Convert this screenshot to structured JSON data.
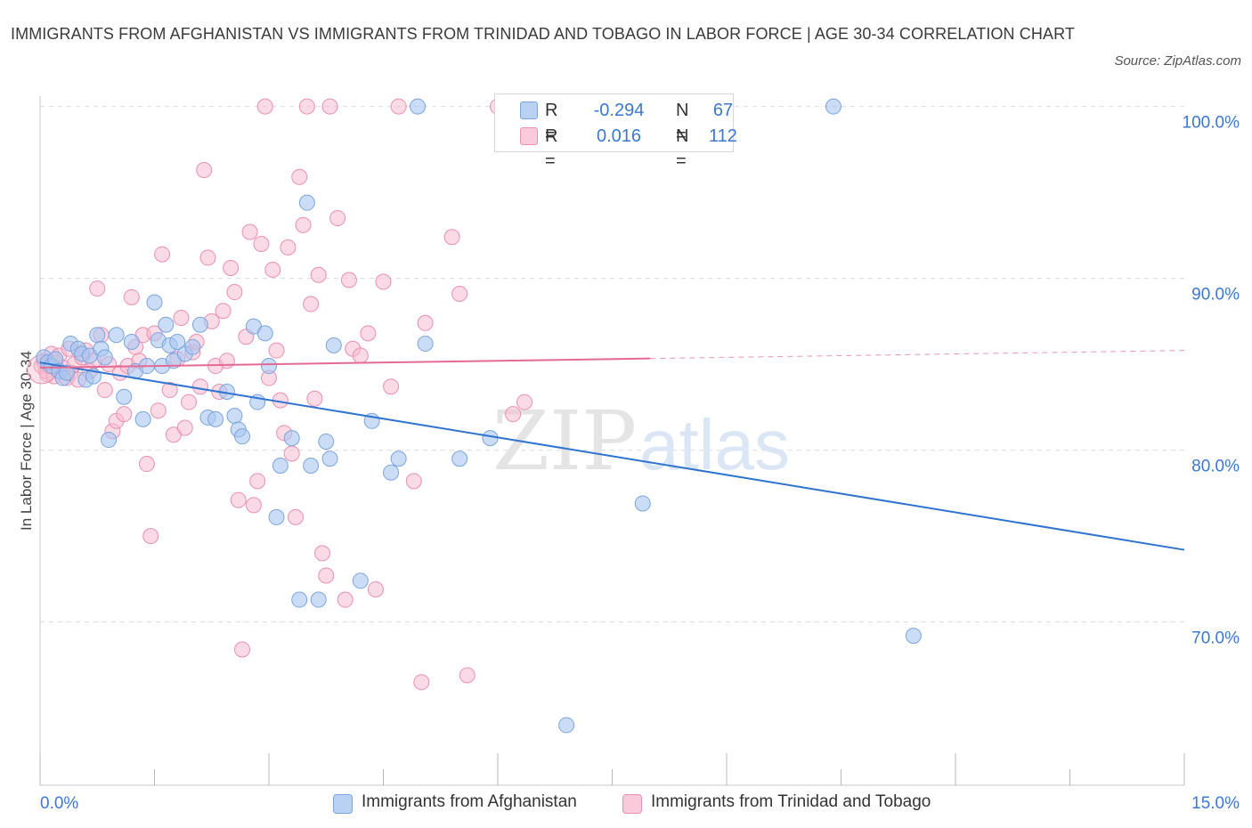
{
  "title": "IMMIGRANTS FROM AFGHANISTAN VS IMMIGRANTS FROM TRINIDAD AND TOBAGO IN LABOR FORCE | AGE 30-34 CORRELATION CHART",
  "source": "Source: ZipAtlas.com",
  "watermark": {
    "zip": "ZIP",
    "atlas": "atlas"
  },
  "legend": {
    "r_label": "R =",
    "n_label": "N =",
    "series": [
      {
        "r": "-0.294",
        "n": "67"
      },
      {
        "r": "0.016",
        "n": "112"
      }
    ]
  },
  "bottom_legend": [
    "Immigrants from Afghanistan",
    "Immigrants from Trinidad and Tobago"
  ],
  "colors": {
    "blue_fill": "#a8c6f0",
    "blue_stroke": "#7aa5e0",
    "blue_line": "#2f74d0",
    "pink_fill": "#f6bcd0",
    "pink_stroke": "#ec8fb0",
    "pink_line": "#e46a96",
    "axis_label": "#3b78d4",
    "grid": "#dcdcdc"
  },
  "chart_data": {
    "type": "scatter",
    "title": "IMMIGRANTS FROM AFGHANISTAN VS IMMIGRANTS FROM TRINIDAD AND TOBAGO IN LABOR FORCE | AGE 30-34 CORRELATION CHART",
    "xlabel": "",
    "ylabel": "In Labor Force | Age 30-34",
    "xlim": [
      0.0,
      15.0
    ],
    "ylim": [
      60.5,
      100.6
    ],
    "x_tick_labels": [
      "0.0%",
      "15.0%"
    ],
    "y_ticks": [
      70,
      80,
      90,
      100
    ],
    "y_tick_labels": [
      "70.0%",
      "80.0%",
      "90.0%",
      "100.0%"
    ],
    "grid": true,
    "legend_position": "top-center",
    "series": [
      {
        "name": "Immigrants from Afghanistan",
        "r": -0.294,
        "n": 67,
        "trend": {
          "x": [
            0.0,
            15.0
          ],
          "y": [
            85.1,
            74.2
          ],
          "dashed_from": null
        },
        "points": [
          [
            0.05,
            85.4
          ],
          [
            0.1,
            85.1
          ],
          [
            0.15,
            84.9
          ],
          [
            0.2,
            85.3
          ],
          [
            0.25,
            84.6
          ],
          [
            0.3,
            84.2
          ],
          [
            0.35,
            84.5
          ],
          [
            0.4,
            86.2
          ],
          [
            0.5,
            85.9
          ],
          [
            0.55,
            85.6
          ],
          [
            0.6,
            84.1
          ],
          [
            0.65,
            85.5
          ],
          [
            0.7,
            84.3
          ],
          [
            0.75,
            86.7
          ],
          [
            0.8,
            85.9
          ],
          [
            0.85,
            85.4
          ],
          [
            0.9,
            80.6
          ],
          [
            1.0,
            86.7
          ],
          [
            1.1,
            83.1
          ],
          [
            1.2,
            86.3
          ],
          [
            1.25,
            84.6
          ],
          [
            1.35,
            81.8
          ],
          [
            1.4,
            84.9
          ],
          [
            1.5,
            88.6
          ],
          [
            1.55,
            86.4
          ],
          [
            1.6,
            84.9
          ],
          [
            1.65,
            87.3
          ],
          [
            1.7,
            86.1
          ],
          [
            1.75,
            85.2
          ],
          [
            1.8,
            86.3
          ],
          [
            1.9,
            85.6
          ],
          [
            2.0,
            86.0
          ],
          [
            2.1,
            87.3
          ],
          [
            2.2,
            81.9
          ],
          [
            2.3,
            81.8
          ],
          [
            2.45,
            83.4
          ],
          [
            2.55,
            82.0
          ],
          [
            2.6,
            81.2
          ],
          [
            2.65,
            80.8
          ],
          [
            2.8,
            87.2
          ],
          [
            2.85,
            82.8
          ],
          [
            2.95,
            86.8
          ],
          [
            3.0,
            84.9
          ],
          [
            3.1,
            76.1
          ],
          [
            3.15,
            79.1
          ],
          [
            3.3,
            80.7
          ],
          [
            3.4,
            71.3
          ],
          [
            3.5,
            94.4
          ],
          [
            3.55,
            79.1
          ],
          [
            3.65,
            71.3
          ],
          [
            3.75,
            80.5
          ],
          [
            3.8,
            79.5
          ],
          [
            3.85,
            86.1
          ],
          [
            4.2,
            72.4
          ],
          [
            4.35,
            81.7
          ],
          [
            4.6,
            78.7
          ],
          [
            4.7,
            79.5
          ],
          [
            4.95,
            100.0
          ],
          [
            5.05,
            86.2
          ],
          [
            5.5,
            79.5
          ],
          [
            5.9,
            80.7
          ],
          [
            6.9,
            64.0
          ],
          [
            7.9,
            76.9
          ],
          [
            10.4,
            100.0
          ],
          [
            11.45,
            69.2
          ]
        ]
      },
      {
        "name": "Immigrants from Trinidad and Tobago",
        "r": 0.016,
        "n": 112,
        "trend": {
          "x": [
            0.0,
            15.0
          ],
          "y": [
            84.8,
            85.8
          ],
          "dashed_from": 8.0
        },
        "points": [
          [
            0.02,
            84.9
          ],
          [
            0.05,
            85.2
          ],
          [
            0.08,
            84.6
          ],
          [
            0.1,
            84.4
          ],
          [
            0.12,
            84.9
          ],
          [
            0.15,
            85.6
          ],
          [
            0.18,
            84.3
          ],
          [
            0.2,
            85.1
          ],
          [
            0.22,
            84.7
          ],
          [
            0.25,
            85.5
          ],
          [
            0.3,
            84.8
          ],
          [
            0.35,
            84.2
          ],
          [
            0.38,
            85.9
          ],
          [
            0.4,
            84.5
          ],
          [
            0.45,
            85.0
          ],
          [
            0.5,
            84.1
          ],
          [
            0.55,
            85.4
          ],
          [
            0.6,
            85.8
          ],
          [
            0.65,
            84.6
          ],
          [
            0.7,
            85.2
          ],
          [
            0.75,
            89.4
          ],
          [
            0.8,
            86.7
          ],
          [
            0.85,
            83.5
          ],
          [
            0.9,
            85.0
          ],
          [
            0.95,
            81.1
          ],
          [
            1.0,
            81.7
          ],
          [
            1.05,
            84.5
          ],
          [
            1.1,
            82.1
          ],
          [
            1.15,
            84.9
          ],
          [
            1.2,
            88.9
          ],
          [
            1.25,
            86.0
          ],
          [
            1.3,
            85.2
          ],
          [
            1.35,
            86.7
          ],
          [
            1.4,
            79.2
          ],
          [
            1.45,
            75.0
          ],
          [
            1.5,
            86.8
          ],
          [
            1.55,
            82.3
          ],
          [
            1.6,
            91.4
          ],
          [
            1.7,
            83.5
          ],
          [
            1.75,
            80.9
          ],
          [
            1.8,
            85.3
          ],
          [
            1.85,
            87.7
          ],
          [
            1.9,
            81.3
          ],
          [
            1.95,
            82.8
          ],
          [
            2.0,
            85.7
          ],
          [
            2.05,
            86.3
          ],
          [
            2.1,
            83.7
          ],
          [
            2.15,
            96.3
          ],
          [
            2.2,
            91.2
          ],
          [
            2.25,
            87.5
          ],
          [
            2.3,
            84.9
          ],
          [
            2.35,
            83.4
          ],
          [
            2.4,
            88.1
          ],
          [
            2.45,
            85.2
          ],
          [
            2.5,
            90.6
          ],
          [
            2.55,
            89.2
          ],
          [
            2.6,
            77.1
          ],
          [
            2.65,
            68.4
          ],
          [
            2.7,
            86.6
          ],
          [
            2.75,
            92.7
          ],
          [
            2.8,
            76.8
          ],
          [
            2.85,
            78.2
          ],
          [
            2.9,
            92.0
          ],
          [
            2.95,
            100.0
          ],
          [
            3.0,
            84.2
          ],
          [
            3.05,
            90.5
          ],
          [
            3.1,
            85.8
          ],
          [
            3.15,
            82.9
          ],
          [
            3.2,
            81.0
          ],
          [
            3.25,
            91.8
          ],
          [
            3.3,
            79.8
          ],
          [
            3.35,
            76.1
          ],
          [
            3.4,
            95.9
          ],
          [
            3.45,
            93.1
          ],
          [
            3.5,
            100.0
          ],
          [
            3.55,
            88.5
          ],
          [
            3.6,
            83.0
          ],
          [
            3.65,
            90.2
          ],
          [
            3.7,
            74.0
          ],
          [
            3.75,
            72.7
          ],
          [
            3.8,
            100.0
          ],
          [
            3.9,
            93.5
          ],
          [
            4.0,
            71.3
          ],
          [
            4.05,
            89.9
          ],
          [
            4.1,
            85.9
          ],
          [
            4.2,
            85.5
          ],
          [
            4.3,
            86.8
          ],
          [
            4.4,
            71.9
          ],
          [
            4.5,
            89.8
          ],
          [
            4.6,
            83.7
          ],
          [
            4.7,
            100.0
          ],
          [
            4.9,
            78.2
          ],
          [
            5.0,
            66.5
          ],
          [
            5.05,
            87.4
          ],
          [
            5.4,
            92.4
          ],
          [
            5.5,
            89.1
          ],
          [
            5.6,
            66.9
          ],
          [
            6.0,
            100.0
          ],
          [
            6.2,
            82.1
          ],
          [
            6.35,
            82.8
          ]
        ]
      }
    ]
  }
}
